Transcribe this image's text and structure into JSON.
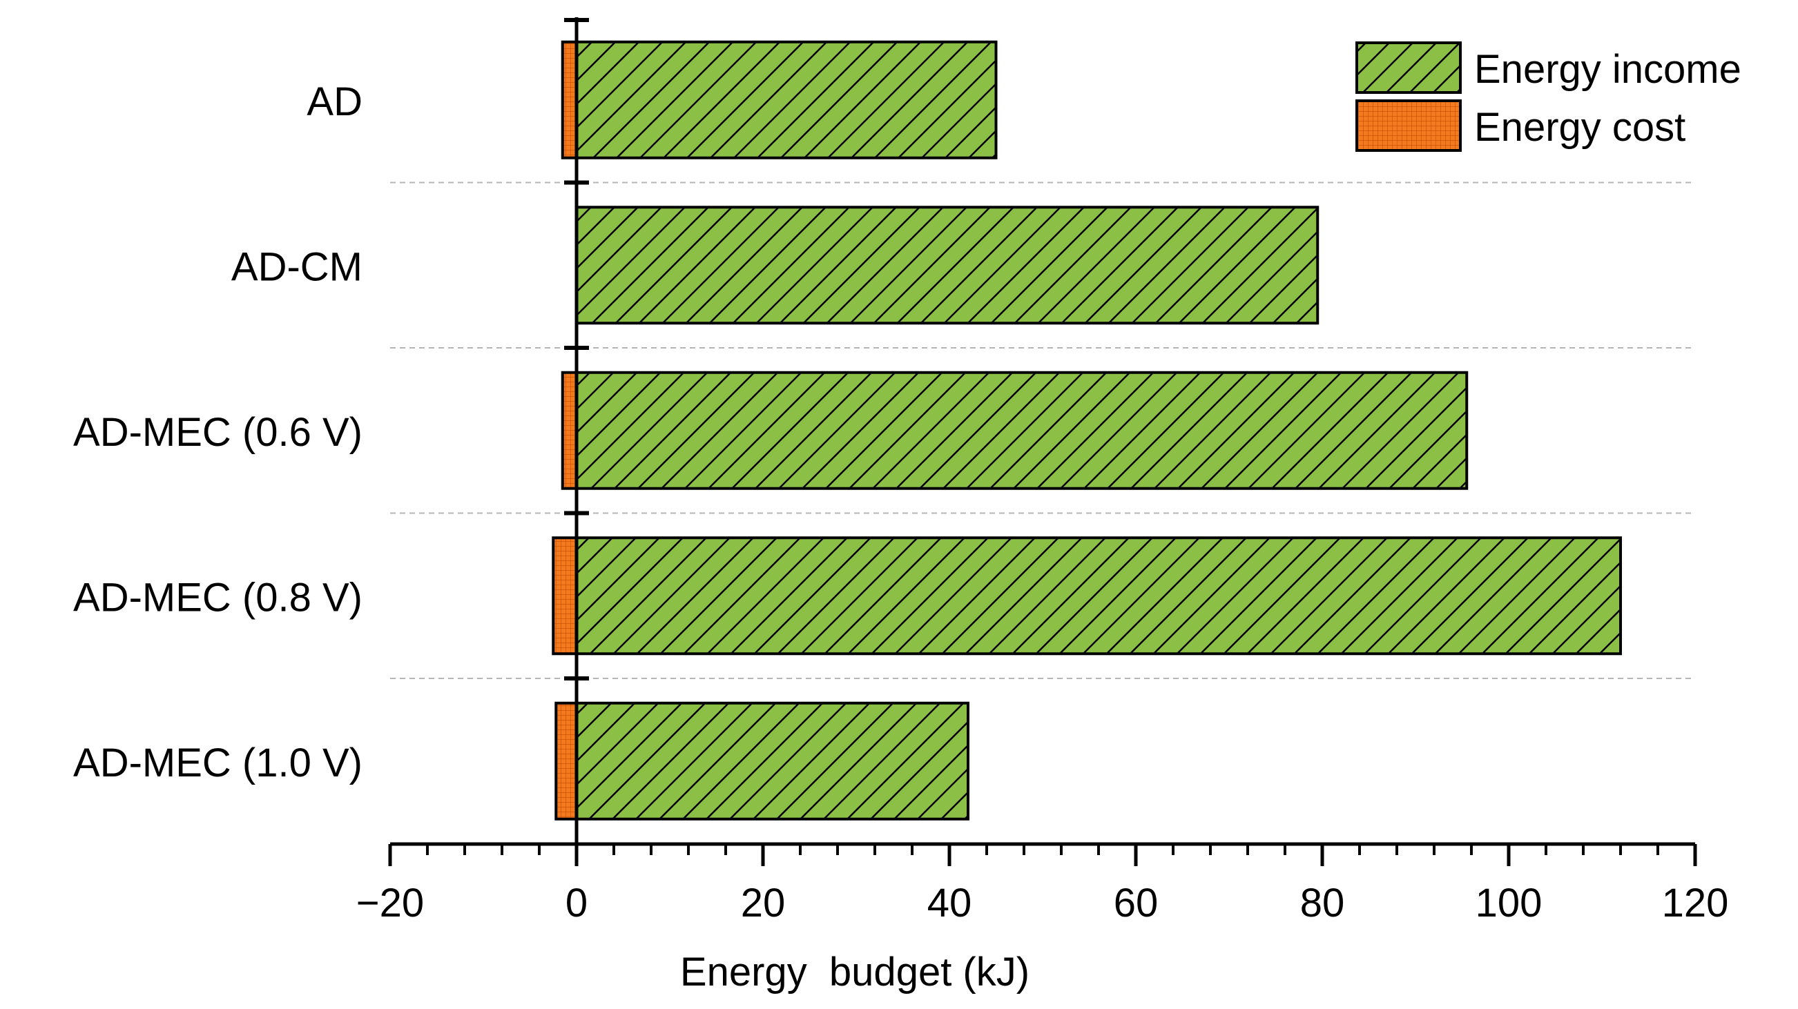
{
  "chart_data": {
    "type": "bar",
    "orientation": "horizontal",
    "title": "",
    "categories": [
      "AD",
      "AD-CM",
      "AD-MEC (0.6 V)",
      "AD-MEC (0.8 V)",
      "AD-MEC (1.0 V)"
    ],
    "series": [
      {
        "name": "Energy income",
        "values": [
          45,
          79.5,
          95.5,
          112,
          42
        ],
        "color": "#8bbf45",
        "pattern": "diagonal-hatch"
      },
      {
        "name": "Energy cost",
        "values": [
          -1.5,
          0,
          -1.5,
          -2.5,
          -2.2
        ],
        "color": "#f47a20",
        "pattern": "grid"
      }
    ],
    "xlabel": "Energy  budget (kJ)",
    "ylabel": "",
    "xlim": [
      -20,
      120
    ],
    "xticks": [
      -20,
      0,
      20,
      40,
      60,
      80,
      100,
      120
    ],
    "xtick_labels": [
      "−20",
      "0",
      "20",
      "40",
      "60",
      "80",
      "100",
      "120"
    ],
    "minor_tick_step": 4,
    "grid": "dashed separators between categories",
    "legend": {
      "position": "top-right",
      "entries": [
        "Energy income",
        "Energy cost"
      ]
    }
  }
}
